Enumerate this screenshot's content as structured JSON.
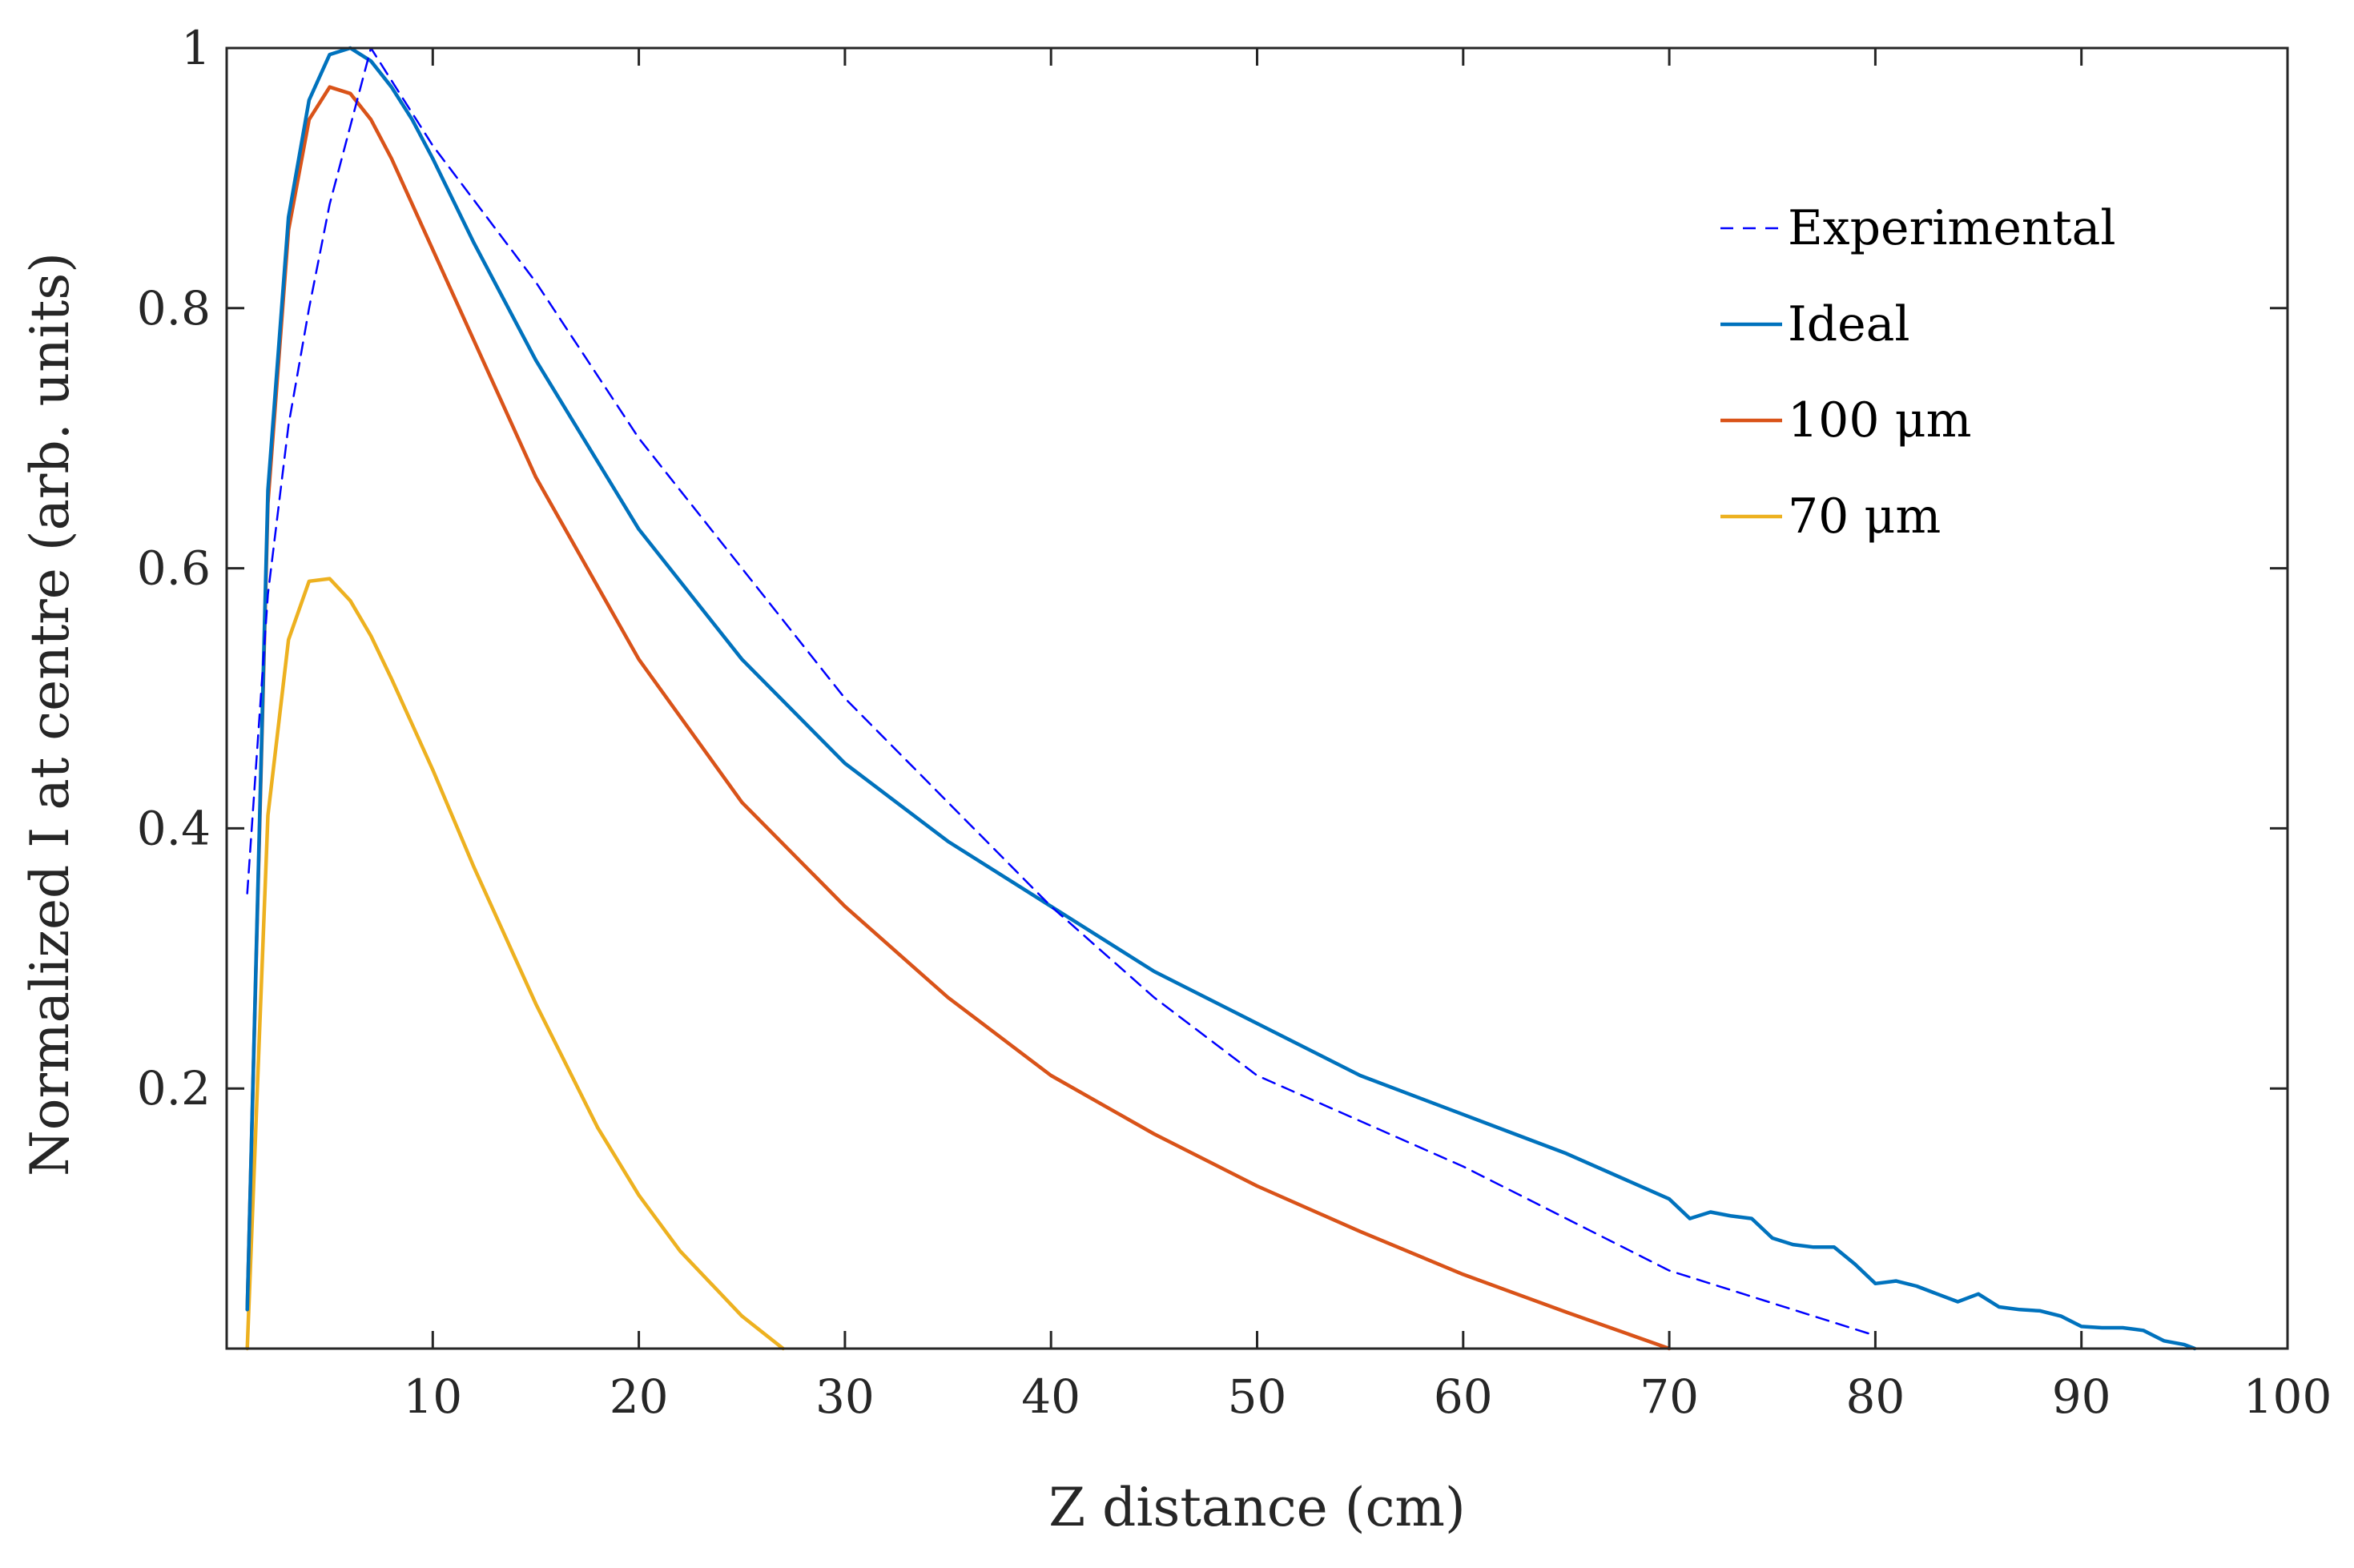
{
  "chart_data": {
    "type": "line",
    "title": "",
    "xlabel": "Z distance (cm)",
    "ylabel": "Normalized I at centre (arb. units)",
    "xlim": [
      0,
      100
    ],
    "ylim": [
      0,
      1
    ],
    "xticks": [
      10,
      20,
      30,
      40,
      50,
      60,
      70,
      80,
      90,
      100
    ],
    "xtick_labels": [
      "10",
      "20",
      "30",
      "40",
      "50",
      "60",
      "70",
      "80",
      "90",
      "100"
    ],
    "yticks": [
      0.2,
      0.4,
      0.6,
      0.8,
      1.0
    ],
    "ytick_labels": [
      "0.2",
      "0.4",
      "0.6",
      "0.8",
      "1"
    ],
    "grid": false,
    "legend_position": "top-right",
    "series": [
      {
        "name": "Experimental",
        "color": "#0000FF",
        "style": "dashed",
        "x": [
          1,
          2,
          3,
          4,
          5,
          6,
          7,
          8,
          9,
          10,
          15,
          20,
          30,
          40,
          45,
          50,
          60,
          70,
          80
        ],
        "y": [
          0.35,
          0.58,
          0.71,
          0.8,
          0.88,
          0.94,
          1.0,
          0.975,
          0.95,
          0.925,
          0.82,
          0.7,
          0.5,
          0.34,
          0.27,
          0.21,
          0.14,
          0.06,
          0.01
        ]
      },
      {
        "name": "Ideal",
        "color": "#0072BD",
        "style": "solid",
        "x": [
          1,
          2,
          3,
          4,
          5,
          6,
          7,
          8,
          9,
          10,
          12,
          15,
          20,
          25,
          30,
          35,
          40,
          45,
          50,
          55,
          60,
          65,
          70,
          71,
          72,
          73,
          74,
          75,
          76,
          77,
          78,
          79,
          80,
          81,
          82,
          83,
          84,
          85,
          86,
          87,
          88,
          89,
          90,
          91,
          92,
          93,
          94,
          95,
          95.5
        ],
        "y": [
          0.03,
          0.66,
          0.87,
          0.96,
          0.995,
          1.0,
          0.99,
          0.97,
          0.945,
          0.915,
          0.85,
          0.76,
          0.63,
          0.53,
          0.45,
          0.39,
          0.34,
          0.29,
          0.25,
          0.21,
          0.18,
          0.15,
          0.115,
          0.1,
          0.105,
          0.102,
          0.1,
          0.085,
          0.08,
          0.078,
          0.078,
          0.065,
          0.05,
          0.052,
          0.048,
          0.042,
          0.036,
          0.042,
          0.032,
          0.03,
          0.029,
          0.025,
          0.017,
          0.016,
          0.016,
          0.014,
          0.006,
          0.003,
          0.0
        ]
      },
      {
        "name": "100 μm",
        "color": "#D95319",
        "style": "solid",
        "x": [
          1,
          2,
          3,
          4,
          5,
          6,
          7,
          8,
          9,
          10,
          12,
          15,
          20,
          25,
          30,
          35,
          40,
          45,
          50,
          55,
          60,
          65,
          70
        ],
        "y": [
          0.03,
          0.65,
          0.86,
          0.945,
          0.97,
          0.965,
          0.945,
          0.915,
          0.88,
          0.845,
          0.775,
          0.67,
          0.53,
          0.42,
          0.34,
          0.27,
          0.21,
          0.165,
          0.125,
          0.09,
          0.057,
          0.028,
          0.0
        ]
      },
      {
        "name": "70 μm",
        "color": "#EDB120",
        "style": "solid",
        "x": [
          1,
          2,
          3,
          4,
          5,
          6,
          7,
          8,
          9,
          10,
          12,
          15,
          18,
          20,
          22,
          25,
          27
        ],
        "y": [
          0.0,
          0.41,
          0.545,
          0.59,
          0.592,
          0.575,
          0.548,
          0.515,
          0.48,
          0.445,
          0.37,
          0.265,
          0.17,
          0.118,
          0.075,
          0.025,
          0.0
        ]
      }
    ]
  }
}
